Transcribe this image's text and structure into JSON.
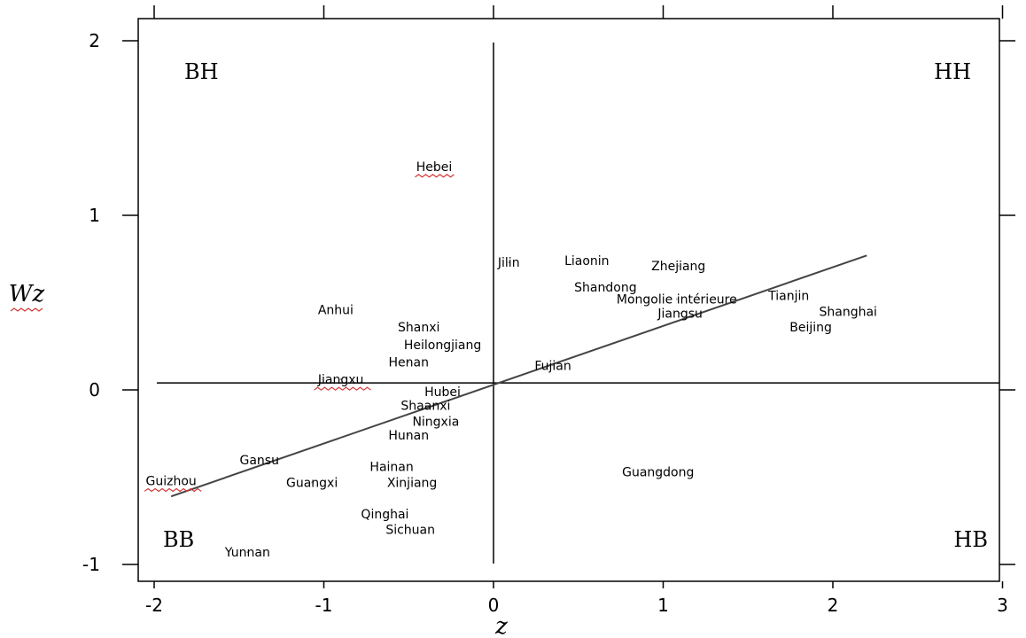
{
  "chart_data": {
    "type": "scatter",
    "xlabel": "z",
    "ylabel": "Wz",
    "xlim": [
      -2.1,
      3.0
    ],
    "ylim": [
      -1.1,
      2.0
    ],
    "xticks": [
      -2,
      -1,
      0,
      1,
      2,
      3
    ],
    "yticks": [
      -1,
      0,
      1,
      2
    ],
    "xtick_labels": [
      "-2",
      "-1",
      "0",
      "1",
      "2",
      "3"
    ],
    "ytick_labels": [
      "-1",
      "0",
      "1",
      "2"
    ],
    "grid": false,
    "legend": "none",
    "quadrant_labels": [
      {
        "id": "bh",
        "text": "BH",
        "position": "top-left"
      },
      {
        "id": "hh",
        "text": "HH",
        "position": "top-right"
      },
      {
        "id": "bb",
        "text": "BB",
        "position": "bottom-left"
      },
      {
        "id": "hb",
        "text": "HB",
        "position": "bottom-right"
      }
    ],
    "reference_lines": {
      "x": 0,
      "y": 0.04
    },
    "regression_line": {
      "from": [
        -1.9,
        -0.61
      ],
      "to": [
        2.2,
        0.77
      ]
    },
    "points": [
      {
        "label": "Hebei",
        "x": -0.35,
        "y": 1.28
      },
      {
        "label": "Jilin",
        "x": 0.09,
        "y": 0.73
      },
      {
        "label": "Liaonin",
        "x": 0.55,
        "y": 0.74
      },
      {
        "label": "Zhejiang",
        "x": 1.09,
        "y": 0.71
      },
      {
        "label": "Shandong",
        "x": 0.66,
        "y": 0.59
      },
      {
        "label": "Mongolie intérieure",
        "x": 1.08,
        "y": 0.52
      },
      {
        "label": "Tianjin",
        "x": 1.74,
        "y": 0.54
      },
      {
        "label": "Jiangsu",
        "x": 1.1,
        "y": 0.44
      },
      {
        "label": "Shanghai",
        "x": 2.09,
        "y": 0.45
      },
      {
        "label": "Beijing",
        "x": 1.87,
        "y": 0.36
      },
      {
        "label": "Anhui",
        "x": -0.93,
        "y": 0.46
      },
      {
        "label": "Shanxi",
        "x": -0.44,
        "y": 0.36
      },
      {
        "label": "Heilongjiang",
        "x": -0.3,
        "y": 0.26
      },
      {
        "label": "Henan",
        "x": -0.5,
        "y": 0.16
      },
      {
        "label": "Fujian",
        "x": 0.35,
        "y": 0.14
      },
      {
        "label": "Jiangxu",
        "x": -0.9,
        "y": 0.06
      },
      {
        "label": "Hubei",
        "x": -0.3,
        "y": -0.01
      },
      {
        "label": "Shaanxi",
        "x": -0.4,
        "y": -0.09
      },
      {
        "label": "Ningxia",
        "x": -0.34,
        "y": -0.18
      },
      {
        "label": "Hunan",
        "x": -0.5,
        "y": -0.26
      },
      {
        "label": "Gansu",
        "x": -1.38,
        "y": -0.4
      },
      {
        "label": "Hainan",
        "x": -0.6,
        "y": -0.44
      },
      {
        "label": "Guizhou",
        "x": -1.9,
        "y": -0.52
      },
      {
        "label": "Guangxi",
        "x": -1.07,
        "y": -0.53
      },
      {
        "label": "Xinjiang",
        "x": -0.48,
        "y": -0.53
      },
      {
        "label": "Guangdong",
        "x": 0.97,
        "y": -0.47
      },
      {
        "label": "Qinghai",
        "x": -0.64,
        "y": -0.71
      },
      {
        "label": "Sichuan",
        "x": -0.49,
        "y": -0.8
      },
      {
        "label": "Yunnan",
        "x": -1.45,
        "y": -0.93
      }
    ],
    "underlined_labels": [
      "Hebei",
      "Jiangxu",
      "Guizhou"
    ]
  }
}
